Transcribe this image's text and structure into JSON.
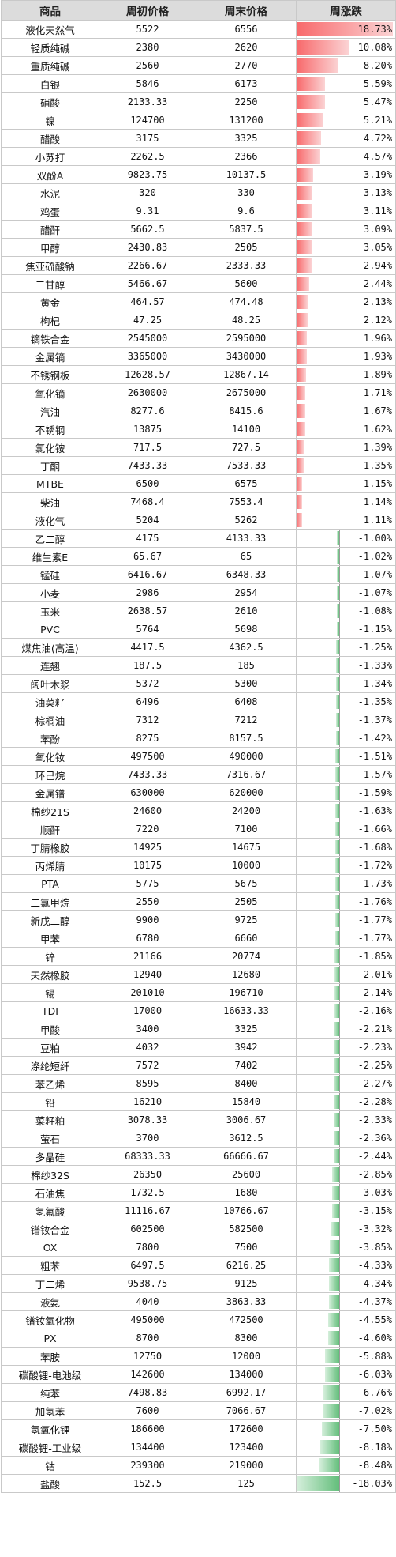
{
  "headers": [
    "商品",
    "周初价格",
    "周末价格",
    "周涨跌"
  ],
  "rows": [
    {
      "name": "液化天然气",
      "start": "5522",
      "end": "6556",
      "change": "18.73%",
      "pct": 18.73
    },
    {
      "name": "轻质纯碱",
      "start": "2380",
      "end": "2620",
      "change": "10.08%",
      "pct": 10.08
    },
    {
      "name": "重质纯碱",
      "start": "2560",
      "end": "2770",
      "change": "8.20%",
      "pct": 8.2
    },
    {
      "name": "白银",
      "start": "5846",
      "end": "6173",
      "change": "5.59%",
      "pct": 5.59
    },
    {
      "name": "硝酸",
      "start": "2133.33",
      "end": "2250",
      "change": "5.47%",
      "pct": 5.47
    },
    {
      "name": "镍",
      "start": "124700",
      "end": "131200",
      "change": "5.21%",
      "pct": 5.21
    },
    {
      "name": "醋酸",
      "start": "3175",
      "end": "3325",
      "change": "4.72%",
      "pct": 4.72
    },
    {
      "name": "小苏打",
      "start": "2262.5",
      "end": "2366",
      "change": "4.57%",
      "pct": 4.57
    },
    {
      "name": "双酚A",
      "start": "9823.75",
      "end": "10137.5",
      "change": "3.19%",
      "pct": 3.19
    },
    {
      "name": "水泥",
      "start": "320",
      "end": "330",
      "change": "3.13%",
      "pct": 3.13
    },
    {
      "name": "鸡蛋",
      "start": "9.31",
      "end": "9.6",
      "change": "3.11%",
      "pct": 3.11
    },
    {
      "name": "醋酐",
      "start": "5662.5",
      "end": "5837.5",
      "change": "3.09%",
      "pct": 3.09
    },
    {
      "name": "甲醇",
      "start": "2430.83",
      "end": "2505",
      "change": "3.05%",
      "pct": 3.05
    },
    {
      "name": "焦亚硫酸钠",
      "start": "2266.67",
      "end": "2333.33",
      "change": "2.94%",
      "pct": 2.94
    },
    {
      "name": "二甘醇",
      "start": "5466.67",
      "end": "5600",
      "change": "2.44%",
      "pct": 2.44
    },
    {
      "name": "黄金",
      "start": "464.57",
      "end": "474.48",
      "change": "2.13%",
      "pct": 2.13
    },
    {
      "name": "枸杞",
      "start": "47.25",
      "end": "48.25",
      "change": "2.12%",
      "pct": 2.12
    },
    {
      "name": "镝铁合金",
      "start": "2545000",
      "end": "2595000",
      "change": "1.96%",
      "pct": 1.96
    },
    {
      "name": "金属镝",
      "start": "3365000",
      "end": "3430000",
      "change": "1.93%",
      "pct": 1.93
    },
    {
      "name": "不锈钢板",
      "start": "12628.57",
      "end": "12867.14",
      "change": "1.89%",
      "pct": 1.89
    },
    {
      "name": "氧化镝",
      "start": "2630000",
      "end": "2675000",
      "change": "1.71%",
      "pct": 1.71
    },
    {
      "name": "汽油",
      "start": "8277.6",
      "end": "8415.6",
      "change": "1.67%",
      "pct": 1.67
    },
    {
      "name": "不锈钢",
      "start": "13875",
      "end": "14100",
      "change": "1.62%",
      "pct": 1.62
    },
    {
      "name": "氯化铵",
      "start": "717.5",
      "end": "727.5",
      "change": "1.39%",
      "pct": 1.39
    },
    {
      "name": "丁酮",
      "start": "7433.33",
      "end": "7533.33",
      "change": "1.35%",
      "pct": 1.35
    },
    {
      "name": "MTBE",
      "start": "6500",
      "end": "6575",
      "change": "1.15%",
      "pct": 1.15
    },
    {
      "name": "柴油",
      "start": "7468.4",
      "end": "7553.4",
      "change": "1.14%",
      "pct": 1.14
    },
    {
      "name": "液化气",
      "start": "5204",
      "end": "5262",
      "change": "1.11%",
      "pct": 1.11
    },
    {
      "name": "乙二醇",
      "start": "4175",
      "end": "4133.33",
      "change": "-1.00%",
      "pct": -1.0
    },
    {
      "name": "维生素E",
      "start": "65.67",
      "end": "65",
      "change": "-1.02%",
      "pct": -1.02
    },
    {
      "name": "锰硅",
      "start": "6416.67",
      "end": "6348.33",
      "change": "-1.07%",
      "pct": -1.07
    },
    {
      "name": "小麦",
      "start": "2986",
      "end": "2954",
      "change": "-1.07%",
      "pct": -1.07
    },
    {
      "name": "玉米",
      "start": "2638.57",
      "end": "2610",
      "change": "-1.08%",
      "pct": -1.08
    },
    {
      "name": "PVC",
      "start": "5764",
      "end": "5698",
      "change": "-1.15%",
      "pct": -1.15
    },
    {
      "name": "煤焦油(高温)",
      "start": "4417.5",
      "end": "4362.5",
      "change": "-1.25%",
      "pct": -1.25
    },
    {
      "name": "连翘",
      "start": "187.5",
      "end": "185",
      "change": "-1.33%",
      "pct": -1.33
    },
    {
      "name": "阔叶木浆",
      "start": "5372",
      "end": "5300",
      "change": "-1.34%",
      "pct": -1.34
    },
    {
      "name": "油菜籽",
      "start": "6496",
      "end": "6408",
      "change": "-1.35%",
      "pct": -1.35
    },
    {
      "name": "棕榈油",
      "start": "7312",
      "end": "7212",
      "change": "-1.37%",
      "pct": -1.37
    },
    {
      "name": "苯酚",
      "start": "8275",
      "end": "8157.5",
      "change": "-1.42%",
      "pct": -1.42
    },
    {
      "name": "氧化钕",
      "start": "497500",
      "end": "490000",
      "change": "-1.51%",
      "pct": -1.51
    },
    {
      "name": "环己烷",
      "start": "7433.33",
      "end": "7316.67",
      "change": "-1.57%",
      "pct": -1.57
    },
    {
      "name": "金属镨",
      "start": "630000",
      "end": "620000",
      "change": "-1.59%",
      "pct": -1.59
    },
    {
      "name": "棉纱21S",
      "start": "24600",
      "end": "24200",
      "change": "-1.63%",
      "pct": -1.63
    },
    {
      "name": "顺酐",
      "start": "7220",
      "end": "7100",
      "change": "-1.66%",
      "pct": -1.66
    },
    {
      "name": "丁腈橡胶",
      "start": "14925",
      "end": "14675",
      "change": "-1.68%",
      "pct": -1.68
    },
    {
      "name": "丙烯腈",
      "start": "10175",
      "end": "10000",
      "change": "-1.72%",
      "pct": -1.72
    },
    {
      "name": "PTA",
      "start": "5775",
      "end": "5675",
      "change": "-1.73%",
      "pct": -1.73
    },
    {
      "name": "二氯甲烷",
      "start": "2550",
      "end": "2505",
      "change": "-1.76%",
      "pct": -1.76
    },
    {
      "name": "新戊二醇",
      "start": "9900",
      "end": "9725",
      "change": "-1.77%",
      "pct": -1.77
    },
    {
      "name": "甲苯",
      "start": "6780",
      "end": "6660",
      "change": "-1.77%",
      "pct": -1.77
    },
    {
      "name": "锌",
      "start": "21166",
      "end": "20774",
      "change": "-1.85%",
      "pct": -1.85
    },
    {
      "name": "天然橡胶",
      "start": "12940",
      "end": "12680",
      "change": "-2.01%",
      "pct": -2.01
    },
    {
      "name": "锡",
      "start": "201010",
      "end": "196710",
      "change": "-2.14%",
      "pct": -2.14
    },
    {
      "name": "TDI",
      "start": "17000",
      "end": "16633.33",
      "change": "-2.16%",
      "pct": -2.16
    },
    {
      "name": "甲酸",
      "start": "3400",
      "end": "3325",
      "change": "-2.21%",
      "pct": -2.21
    },
    {
      "name": "豆粕",
      "start": "4032",
      "end": "3942",
      "change": "-2.23%",
      "pct": -2.23
    },
    {
      "name": "涤纶短纤",
      "start": "7572",
      "end": "7402",
      "change": "-2.25%",
      "pct": -2.25
    },
    {
      "name": "苯乙烯",
      "start": "8595",
      "end": "8400",
      "change": "-2.27%",
      "pct": -2.27
    },
    {
      "name": "铅",
      "start": "16210",
      "end": "15840",
      "change": "-2.28%",
      "pct": -2.28
    },
    {
      "name": "菜籽粕",
      "start": "3078.33",
      "end": "3006.67",
      "change": "-2.33%",
      "pct": -2.33
    },
    {
      "name": "萤石",
      "start": "3700",
      "end": "3612.5",
      "change": "-2.36%",
      "pct": -2.36
    },
    {
      "name": "多晶硅",
      "start": "68333.33",
      "end": "66666.67",
      "change": "-2.44%",
      "pct": -2.44
    },
    {
      "name": "棉纱32S",
      "start": "26350",
      "end": "25600",
      "change": "-2.85%",
      "pct": -2.85
    },
    {
      "name": "石油焦",
      "start": "1732.5",
      "end": "1680",
      "change": "-3.03%",
      "pct": -3.03
    },
    {
      "name": "氢氟酸",
      "start": "11116.67",
      "end": "10766.67",
      "change": "-3.15%",
      "pct": -3.15
    },
    {
      "name": "镨钕合金",
      "start": "602500",
      "end": "582500",
      "change": "-3.32%",
      "pct": -3.32
    },
    {
      "name": "OX",
      "start": "7800",
      "end": "7500",
      "change": "-3.85%",
      "pct": -3.85
    },
    {
      "name": "粗苯",
      "start": "6497.5",
      "end": "6216.25",
      "change": "-4.33%",
      "pct": -4.33
    },
    {
      "name": "丁二烯",
      "start": "9538.75",
      "end": "9125",
      "change": "-4.34%",
      "pct": -4.34
    },
    {
      "name": "液氨",
      "start": "4040",
      "end": "3863.33",
      "change": "-4.37%",
      "pct": -4.37
    },
    {
      "name": "镨钕氧化物",
      "start": "495000",
      "end": "472500",
      "change": "-4.55%",
      "pct": -4.55
    },
    {
      "name": "PX",
      "start": "8700",
      "end": "8300",
      "change": "-4.60%",
      "pct": -4.6
    },
    {
      "name": "苯胺",
      "start": "12750",
      "end": "12000",
      "change": "-5.88%",
      "pct": -5.88
    },
    {
      "name": "碳酸锂-电池级",
      "start": "142600",
      "end": "134000",
      "change": "-6.03%",
      "pct": -6.03
    },
    {
      "name": "纯苯",
      "start": "7498.83",
      "end": "6992.17",
      "change": "-6.76%",
      "pct": -6.76
    },
    {
      "name": "加氢苯",
      "start": "7600",
      "end": "7066.67",
      "change": "-7.02%",
      "pct": -7.02
    },
    {
      "name": "氢氧化锂",
      "start": "186600",
      "end": "172600",
      "change": "-7.50%",
      "pct": -7.5
    },
    {
      "name": "碳酸锂-工业级",
      "start": "134400",
      "end": "123400",
      "change": "-8.18%",
      "pct": -8.18
    },
    {
      "name": "钴",
      "start": "239300",
      "end": "219000",
      "change": "-8.48%",
      "pct": -8.48
    },
    {
      "name": "盐酸",
      "start": "152.5",
      "end": "125",
      "change": "-18.03%",
      "pct": -18.03
    }
  ]
}
